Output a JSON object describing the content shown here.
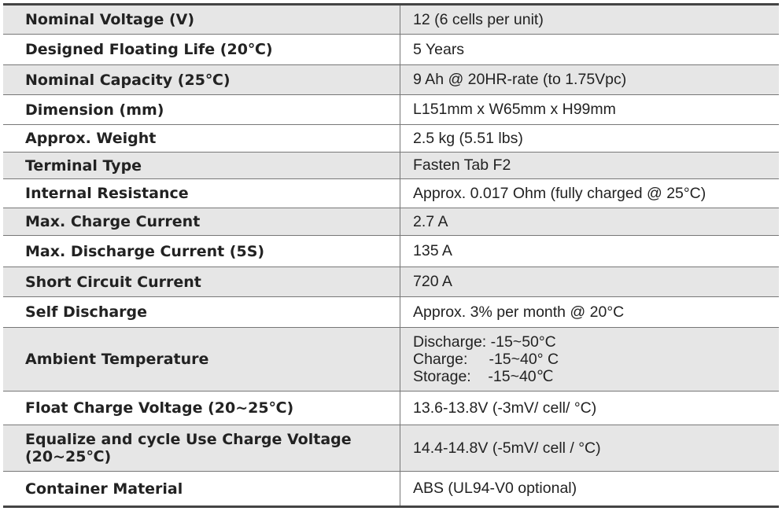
{
  "table": {
    "rows": [
      [
        "Nominal Voltage (V)",
        "12 (6 cells per unit)"
      ],
      [
        "Designed Floating Life (20℃)",
        "5 Years"
      ],
      [
        "Nominal Capacity (25℃)",
        "9 Ah @ 20HR-rate (to 1.75Vpc)"
      ],
      [
        "Dimension (mm)",
        "L151mm x W65mm x H99mm"
      ],
      [
        "Approx. Weight",
        "2.5 kg (5.51 lbs)"
      ],
      [
        "Terminal Type",
        "Fasten Tab F2"
      ],
      [
        "Internal Resistance",
        "Approx. 0.017 Ohm (fully charged @ 25°C)"
      ],
      [
        "Max. Charge Current",
        "2.7 A"
      ],
      [
        "Max. Discharge Current (5S)",
        "135 A"
      ],
      [
        "Short Circuit Current",
        "720 A"
      ],
      [
        "Self Discharge",
        "Approx. 3% per month @ 20°C"
      ],
      [
        "Ambient Temperature",
        [
          "Discharge: -15~50°C",
          "Charge:     -15~40° C",
          "Storage:    -15~40℃"
        ]
      ],
      [
        "Float Charge Voltage (20~25℃)",
        "13.6-13.8V (-3mV/ cell/ °C)"
      ],
      [
        "Equalize and cycle Use Charge Voltage (20~25℃)",
        "14.4-14.8V (-5mV/ cell / °C)"
      ],
      [
        "Container Material",
        "ABS (UL94-V0 optional)"
      ]
    ]
  }
}
